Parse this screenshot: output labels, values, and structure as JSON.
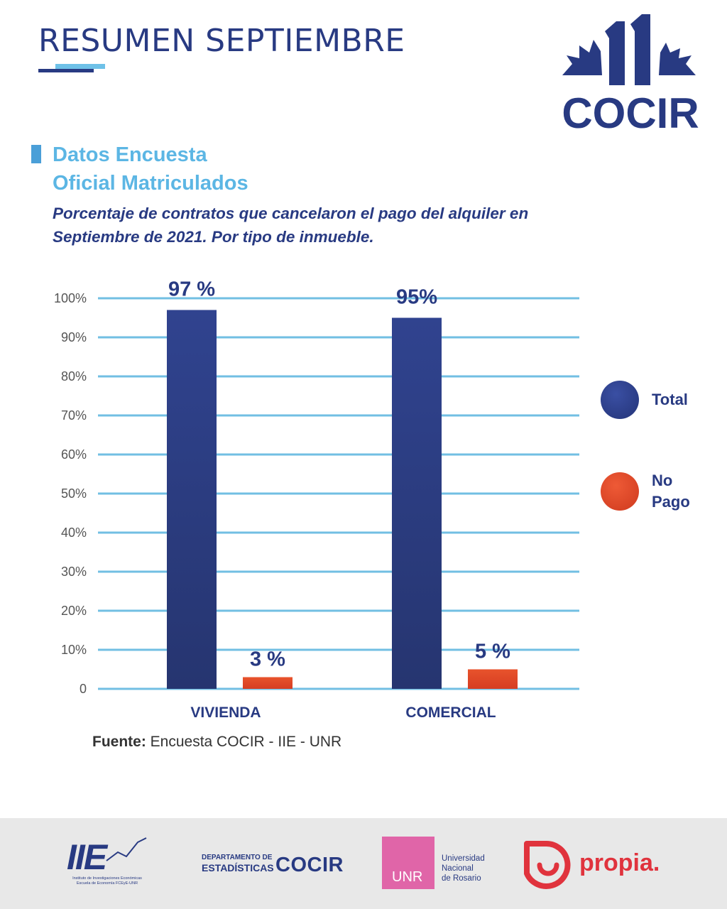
{
  "header": {
    "title": "RESUMEN SEPTIEMBRE",
    "logo_text": "COCIR",
    "logo_number": "11"
  },
  "section": {
    "title_line1": "Datos Encuesta",
    "title_line2": "Oficial Matriculados",
    "subtitle": "Porcentaje de contratos que cancelaron el pago del alquiler en Septiembre de 2021. Por tipo de inmueble."
  },
  "colors": {
    "total": "#2d3f8c",
    "no_pago": "#e2492a",
    "grid": "#72bfe3",
    "brand_dark": "#283a82",
    "brand_light": "#5cb6e4"
  },
  "chart_data": {
    "type": "bar",
    "categories": [
      "VIVIENDA",
      "COMERCIAL"
    ],
    "series": [
      {
        "name": "Total",
        "values": [
          97,
          95
        ],
        "labels": [
          "97 %",
          "95%"
        ]
      },
      {
        "name": "No Pago",
        "values": [
          3,
          5
        ],
        "labels": [
          "3 %",
          "5 %"
        ]
      }
    ],
    "yticks": [
      "0",
      "10%",
      "20%",
      "30%",
      "40%",
      "50%",
      "60%",
      "70%",
      "80%",
      "90%",
      "100%"
    ],
    "ylim": [
      0,
      100
    ],
    "grid": true,
    "legend_position": "right"
  },
  "legend": [
    {
      "label_line1": "Total",
      "label_line2": ""
    },
    {
      "label_line1": "No",
      "label_line2": "Pago"
    }
  ],
  "source": {
    "label": "Fuente:",
    "text": " Encuesta COCIR - IIE - UNR"
  },
  "footer": {
    "iie_mark": "IIE",
    "iie_caption_line1": "Instituto de Investigaciones Económicas",
    "iie_caption_line2": "Escuela de Economía FCEyE-UNR",
    "dept_line1": "DEPARTAMENTO DE",
    "dept_line2": "ESTADÍSTICAS",
    "dept_brand": "COCIR",
    "unr_abbr": "UNR",
    "unr_line1": "Universidad",
    "unr_line2": "Nacional",
    "unr_line3": "de Rosario",
    "propia": "propia."
  }
}
